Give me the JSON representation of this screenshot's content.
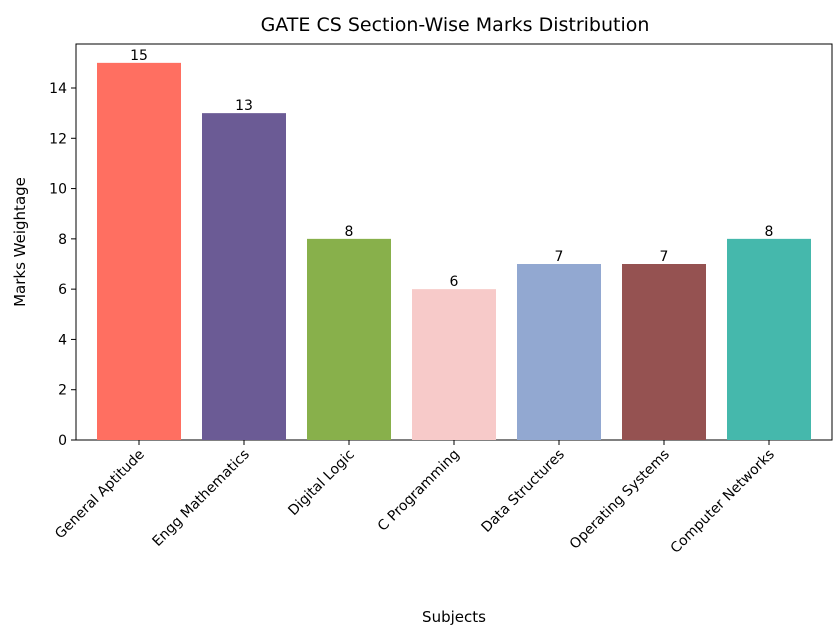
{
  "chart_data": {
    "type": "bar",
    "title": "GATE CS Section-Wise Marks Distribution",
    "xlabel": "Subjects",
    "ylabel": "Marks Weightage",
    "categories": [
      "General Aptitude",
      "Engg Mathematics",
      "Digital Logic",
      "C Programming",
      "Data Structures",
      "Operating Systems",
      "Computer Networks"
    ],
    "values": [
      15,
      13,
      8,
      6,
      7,
      7,
      8
    ],
    "value_labels": [
      "15",
      "13",
      "8",
      "6",
      "7",
      "7",
      "8"
    ],
    "colors": [
      "#ff6f61",
      "#6b5b95",
      "#88b04b",
      "#f7cac9",
      "#92a8d1",
      "#955251",
      "#45b8ac"
    ],
    "ylim": [
      0,
      15.75
    ],
    "yticks": [
      0,
      2,
      4,
      6,
      8,
      10,
      12,
      14
    ],
    "ytick_labels": [
      "0",
      "2",
      "4",
      "6",
      "8",
      "10",
      "12",
      "14"
    ],
    "grid": false,
    "legend": "none"
  }
}
